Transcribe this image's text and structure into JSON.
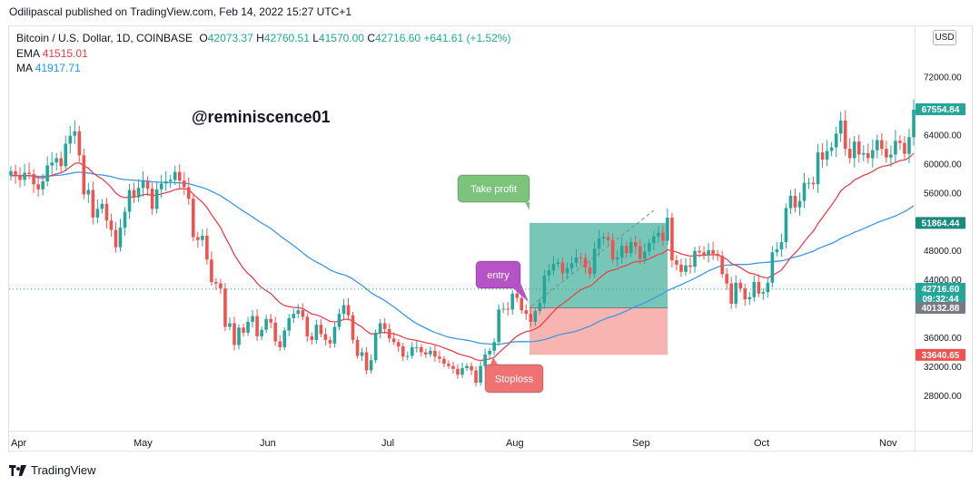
{
  "publisher_line": "Odilipascal published on TradingView.com, Feb 14, 2022 15:27 UTC+1",
  "legend": {
    "symbol": "Bitcoin / U.S. Dollar, 1D, COINBASE",
    "open_label": "O",
    "open": "42073.37",
    "high_label": "H",
    "high": "42760.51",
    "low_label": "L",
    "low": "41570.00",
    "close_label": "C",
    "close": "42716.60",
    "change": "+641.61 (+1.52%)",
    "ema_label": "EMA",
    "ema_value": "41515.01",
    "ma_label": "MA",
    "ma_value": "41917.71"
  },
  "currency_button": "USD",
  "watermark": "@reminiscence01",
  "footer_brand": "TradingView",
  "colors": {
    "up": "#26a69a",
    "down": "#ef5350",
    "ema": "#e8434f",
    "ma": "#3d98e8",
    "profit_zone": "#5fbcac",
    "loss_zone": "#f6aca9"
  },
  "chart_data": {
    "type": "candlestick",
    "ylim": [
      24000,
      76000
    ],
    "y_ticks": [
      "72000.00",
      "64000.00",
      "60000.00",
      "56000.00",
      "48000.00",
      "44000.00",
      "36000.00",
      "32000.00",
      "28000.00"
    ],
    "x_ticks": [
      "Apr",
      "May",
      "Jun",
      "Jul",
      "Aug",
      "Sep",
      "Oct",
      "Nov"
    ],
    "price_labels": [
      {
        "text": "67554.84",
        "value": 67554.84,
        "color": "#26a69a"
      },
      {
        "text": "51864.44",
        "value": 51864.44,
        "color": "#1a8a7c"
      },
      {
        "text": "42716.60",
        "sub": "09:32:44",
        "value": 42716.6,
        "color": "#26a69a"
      },
      {
        "text": "40132.88",
        "value": 40132.88,
        "color": "#787b86"
      },
      {
        "text": "33640.65",
        "value": 33640.65,
        "color": "#ef5350"
      }
    ],
    "close_series": [
      59000,
      58500,
      57800,
      58800,
      58600,
      57200,
      56500,
      57600,
      59800,
      60200,
      60800,
      59700,
      62800,
      63900,
      64500,
      61200,
      55800,
      56400,
      52600,
      53800,
      54500,
      52200,
      50900,
      48500,
      51200,
      53400,
      56400,
      55400,
      56700,
      57600,
      56600,
      53800,
      56500,
      57300,
      57600,
      57800,
      58900,
      57700,
      56800,
      55200,
      49900,
      49500,
      50100,
      46800,
      43700,
      43500,
      42800,
      37500,
      38000,
      35000,
      37400,
      36700,
      38200,
      39000,
      36200,
      37100,
      38600,
      38100,
      35500,
      34700,
      37000,
      38700,
      39300,
      39800,
      38900,
      36200,
      35700,
      37800,
      36500,
      35700,
      35200,
      37500,
      39300,
      40500,
      39100,
      35700,
      33500,
      34000,
      31500,
      32900,
      36700,
      38000,
      37200,
      35900,
      35400,
      34800,
      33400,
      33500,
      34700,
      34700,
      34000,
      33700,
      34200,
      33400,
      33100,
      32400,
      32100,
      31700,
      30900,
      31800,
      32100,
      31500,
      29800,
      32100,
      33700,
      34200,
      35400,
      39900,
      40000,
      39900,
      42100,
      41500,
      39800,
      39300,
      38200,
      39700,
      40800,
      44600,
      45300,
      46200,
      46400,
      44900,
      45600,
      46300,
      47100,
      47000,
      45700,
      44800,
      48300,
      49700,
      49900,
      49500,
      46800,
      47100,
      48700,
      47700,
      49200,
      48600,
      46900,
      47900,
      49100,
      50000,
      50500,
      49400,
      52600,
      46700,
      46100,
      45100,
      46000,
      45800,
      48000,
      47800,
      47400,
      48100,
      47600,
      47300,
      44800,
      43500,
      40700,
      43600,
      42800,
      41300,
      41600,
      43700,
      42100,
      42300,
      43600,
      47800,
      48200,
      49200,
      53900,
      55600,
      54000,
      54900,
      57400,
      57400,
      57200,
      61600,
      60600,
      61800,
      62300,
      64200,
      66000,
      62100,
      60800,
      63100,
      61300,
      61500,
      60800,
      61900,
      63300,
      62100,
      60900,
      61300,
      63200,
      62900,
      61400,
      63700,
      67500
    ],
    "ema_value": 41515.01,
    "ma_value": 41917.71,
    "ema_period": 20,
    "ma_period": 50,
    "trade": {
      "entry_value": 40132.88,
      "take_profit_value": 51864.44,
      "stop_loss_value": 33640.65,
      "take_profit_label": "Take profit",
      "entry_label": "entry",
      "stop_loss_label": "Stoploss"
    }
  }
}
